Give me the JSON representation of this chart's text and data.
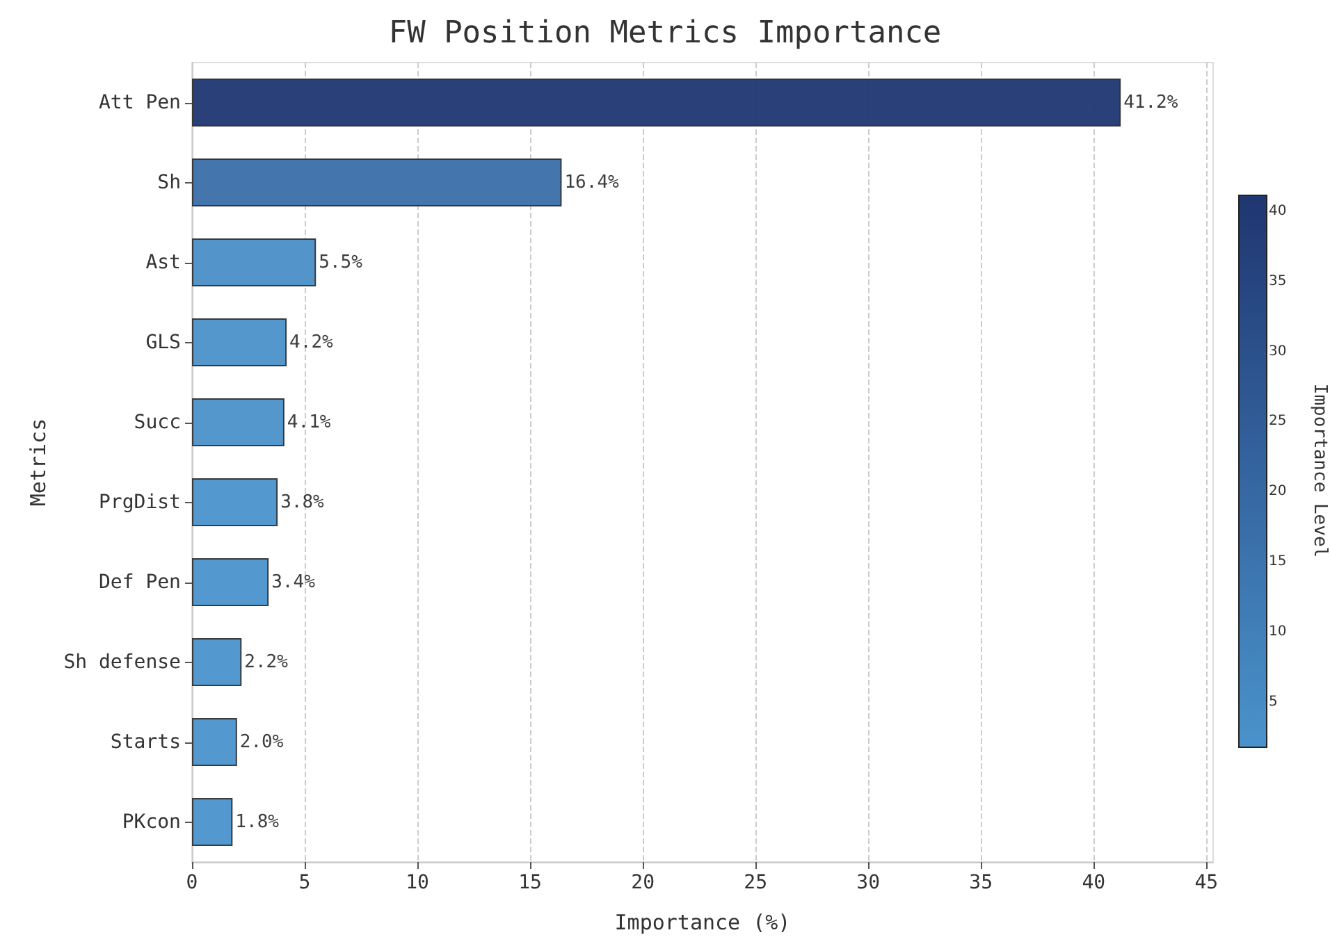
{
  "chart_data": {
    "type": "bar",
    "orientation": "horizontal",
    "title": "FW Position Metrics Importance",
    "xlabel": "Importance (%)",
    "ylabel": "Metrics",
    "clabel": "Importance Level",
    "categories": [
      "Att Pen",
      "Sh",
      "Ast",
      "GLS",
      "Succ",
      "PrgDist",
      "Def Pen",
      "Sh defense",
      "Starts",
      "PKcon"
    ],
    "values": [
      41.2,
      16.4,
      5.5,
      4.2,
      4.1,
      3.8,
      3.4,
      2.2,
      2.0,
      1.8
    ],
    "colors": [
      "#1f3671",
      "#3a6ea8",
      "#4a8fc8",
      "#4a91ca",
      "#4a91ca",
      "#4a92cb",
      "#4a92cb",
      "#4a93cc",
      "#4a93cc",
      "#4a93cc"
    ],
    "value_labels": [
      "41.2%",
      "16.4%",
      "5.5%",
      "4.2%",
      "4.1%",
      "3.8%",
      "3.4%",
      "2.2%",
      "2.0%",
      "1.8%"
    ],
    "xlim": [
      0,
      45.3
    ],
    "xticks": [
      0,
      5,
      10,
      15,
      20,
      25,
      30,
      35,
      40,
      45
    ],
    "clim": [
      1.8,
      41.2
    ],
    "cticks": [
      5,
      10,
      15,
      20,
      25,
      30,
      35,
      40
    ],
    "grid": "x"
  }
}
